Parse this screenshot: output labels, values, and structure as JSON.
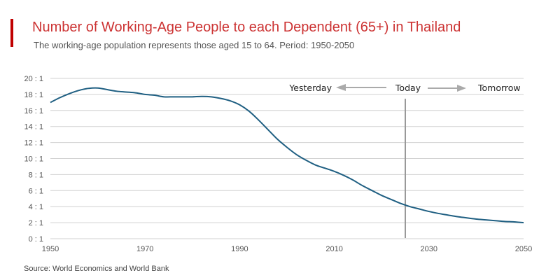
{
  "header": {
    "title": "Number of Working-Age People to each Dependent (65+) in Thailand",
    "subtitle": "The working-age population represents those aged 15 to 64. Period: 1950-2050"
  },
  "footer": {
    "source": "Source: World Economics and World Bank"
  },
  "colors": {
    "accent": "#c00000",
    "title": "#cc3333",
    "line": "#1f5f82",
    "grid": "#d0d0d0",
    "marker": "#999999",
    "arrow": "#aaaaaa"
  },
  "chart_data": {
    "type": "line",
    "title": "Number of Working-Age People to each Dependent (65+) in Thailand",
    "subtitle": "The working-age population represents those aged 15 to 64. Period: 1950-2050",
    "xlabel": "",
    "ylabel": "",
    "xlim": [
      1950,
      2050
    ],
    "ylim": [
      0,
      20
    ],
    "grid": true,
    "x_ticks": [
      1950,
      1970,
      1990,
      2010,
      2030,
      2050
    ],
    "x_tick_labels": [
      "1950",
      "1970",
      "1990",
      "2010",
      "2030",
      "2050"
    ],
    "y_ticks": [
      0,
      2,
      4,
      6,
      8,
      10,
      12,
      14,
      16,
      18,
      20
    ],
    "y_tick_labels": [
      "0 : 1",
      "2 : 1",
      "4 : 1",
      "6 : 1",
      "8 : 1",
      "10 : 1",
      "12 : 1",
      "14 : 1",
      "16 : 1",
      "18 : 1",
      "20 : 1"
    ],
    "series": [
      {
        "x": [
          1950,
          1952,
          1954,
          1956,
          1958,
          1960,
          1962,
          1964,
          1966,
          1968,
          1970,
          1972,
          1974,
          1976,
          1978,
          1980,
          1982,
          1984,
          1986,
          1988,
          1990,
          1992,
          1994,
          1996,
          1998,
          2000,
          2002,
          2004,
          2006,
          2008,
          2010,
          2012,
          2014,
          2016,
          2018,
          2020,
          2022,
          2024,
          2026,
          2028,
          2030,
          2032,
          2034,
          2036,
          2038,
          2040,
          2042,
          2044,
          2046,
          2048,
          2050
        ],
        "values": [
          17.0,
          17.6,
          18.1,
          18.5,
          18.75,
          18.8,
          18.6,
          18.4,
          18.3,
          18.2,
          18.0,
          17.9,
          17.7,
          17.7,
          17.7,
          17.7,
          17.75,
          17.7,
          17.5,
          17.2,
          16.7,
          15.9,
          14.8,
          13.6,
          12.4,
          11.4,
          10.5,
          9.8,
          9.2,
          8.8,
          8.4,
          7.9,
          7.3,
          6.6,
          6.0,
          5.4,
          4.9,
          4.4,
          4.0,
          3.7,
          3.4,
          3.15,
          2.95,
          2.75,
          2.6,
          2.45,
          2.35,
          2.25,
          2.15,
          2.1,
          2.0
        ]
      }
    ],
    "annotations": {
      "today_year": 2025,
      "yesterday_label": "Yesterday",
      "today_label": "Today",
      "tomorrow_label": "Tomorrow"
    }
  }
}
